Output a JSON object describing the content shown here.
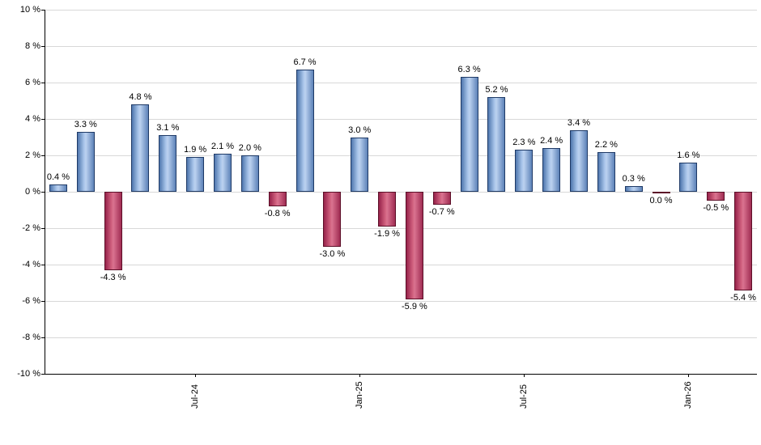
{
  "chart_data": {
    "type": "bar",
    "title": "",
    "xlabel": "",
    "ylabel": "",
    "ylim": [
      -10,
      10
    ],
    "ytick_step": 2,
    "ytick_suffix": " %",
    "grid": true,
    "legend": "none",
    "values": [
      0.4,
      3.3,
      -4.3,
      4.8,
      3.1,
      1.9,
      2.1,
      2.0,
      -0.8,
      6.7,
      -3.0,
      3.0,
      -1.9,
      -5.9,
      -0.7,
      6.3,
      5.2,
      2.3,
      2.4,
      3.4,
      2.2,
      0.3,
      0.0,
      1.6,
      -0.5,
      -5.4
    ],
    "bar_labels": [
      "0.4 %",
      "3.3 %",
      "-4.3 %",
      "4.8 %",
      "3.1 %",
      "1.9 %",
      "2.1 %",
      "2.0 %",
      "-0.8 %",
      "6.7 %",
      "-3.0 %",
      "3.0 %",
      "-1.9 %",
      "-5.9 %",
      "-0.7 %",
      "6.3 %",
      "5.2 %",
      "2.3 %",
      "2.4 %",
      "3.4 %",
      "2.2 %",
      "0.3 %",
      "0.0 %",
      "1.6 %",
      "-0.5 %",
      "-5.4 %"
    ],
    "x_axis_labels": [
      {
        "index": 5,
        "label": "Jul-24"
      },
      {
        "index": 11,
        "label": "Jan-25"
      },
      {
        "index": 17,
        "label": "Jul-25"
      },
      {
        "index": 23,
        "label": "Jan-26"
      }
    ],
    "zero_bar_color": "negative",
    "colors": {
      "positive_fill": "#a7c3e9",
      "positive_edge": "#1f3a66",
      "negative_fill": "#cf5f7d",
      "negative_edge": "#5c0f28",
      "grid": "#d8d8d8",
      "axis": "#000000",
      "background": "#ffffff"
    }
  }
}
